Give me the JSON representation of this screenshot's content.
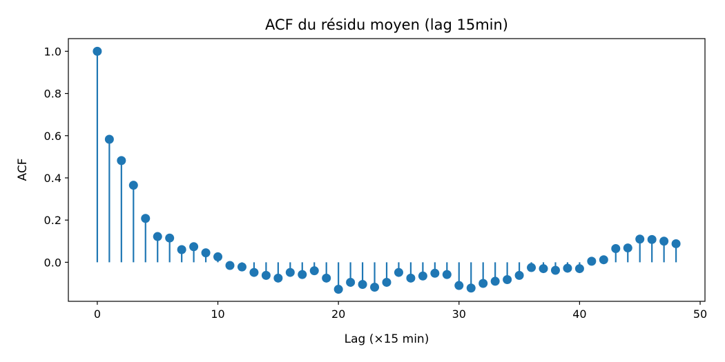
{
  "chart_data": {
    "type": "stem",
    "title": "ACF du résidu moyen (lag 15min)",
    "xlabel": "Lag (×15 min)",
    "ylabel": "ACF",
    "xlim": [
      -2.4,
      50.4
    ],
    "ylim": [
      -0.185,
      1.06
    ],
    "xticks": [
      0,
      10,
      20,
      30,
      40,
      50
    ],
    "xtick_labels": [
      "0",
      "10",
      "20",
      "30",
      "40",
      "50"
    ],
    "yticks": [
      0.0,
      0.2,
      0.4,
      0.6,
      0.8,
      1.0
    ],
    "ytick_labels": [
      "0.0",
      "0.2",
      "0.4",
      "0.6",
      "0.8",
      "1.0"
    ],
    "grid": false,
    "color": "#1f77b4",
    "x": [
      0,
      1,
      2,
      3,
      4,
      5,
      6,
      7,
      8,
      9,
      10,
      11,
      12,
      13,
      14,
      15,
      16,
      17,
      18,
      19,
      20,
      21,
      22,
      23,
      24,
      25,
      26,
      27,
      28,
      29,
      30,
      31,
      32,
      33,
      34,
      35,
      36,
      37,
      38,
      39,
      40,
      41,
      42,
      43,
      44,
      45,
      46,
      47,
      48
    ],
    "values": [
      1.0,
      0.583,
      0.482,
      0.365,
      0.208,
      0.122,
      0.115,
      0.06,
      0.074,
      0.045,
      0.026,
      -0.015,
      -0.022,
      -0.048,
      -0.062,
      -0.075,
      -0.048,
      -0.058,
      -0.04,
      -0.075,
      -0.128,
      -0.095,
      -0.105,
      -0.118,
      -0.095,
      -0.048,
      -0.075,
      -0.065,
      -0.052,
      -0.058,
      -0.11,
      -0.122,
      -0.1,
      -0.09,
      -0.082,
      -0.062,
      -0.025,
      -0.03,
      -0.038,
      -0.028,
      -0.03,
      0.005,
      0.012,
      0.065,
      0.068,
      0.11,
      0.108,
      0.1,
      0.088
    ]
  }
}
